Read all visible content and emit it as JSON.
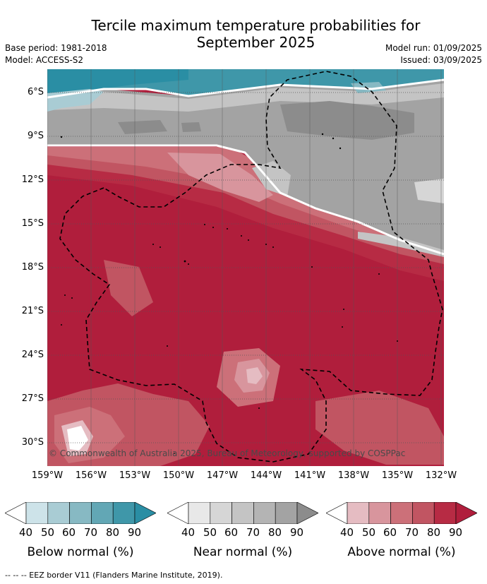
{
  "header": {
    "title_line1": "Tercile maximum temperature probabilities for",
    "title_line2": "September 2025",
    "base_period": "Base period: 1981-2018",
    "model": "Model: ACCESS-S2",
    "model_run": "Model run: 01/09/2025",
    "issued": "Issued: 03/09/2025"
  },
  "map": {
    "lat_ticks": [
      "6°S",
      "9°S",
      "12°S",
      "15°S",
      "18°S",
      "21°S",
      "24°S",
      "27°S",
      "30°S"
    ],
    "lon_ticks": [
      "159°W",
      "156°W",
      "153°W",
      "150°W",
      "147°W",
      "144°W",
      "141°W",
      "138°W",
      "135°W",
      "132°W"
    ],
    "copyright": "© Commonwealth of Australia 2025, Bureau of Meteorology, supported by COSPPac"
  },
  "legend": {
    "tick_labels": [
      "40",
      "50",
      "60",
      "70",
      "80",
      "90"
    ],
    "below": {
      "title": "Below normal (%)",
      "colors": [
        "#ffffff",
        "#cde3e9",
        "#a9ccd4",
        "#87b9c3",
        "#62a7b5",
        "#3f97a9",
        "#2a8ea4"
      ]
    },
    "near": {
      "title": "Near normal (%)",
      "colors": [
        "#ffffff",
        "#e8e8e8",
        "#d6d6d6",
        "#c4c4c4",
        "#b4b4b4",
        "#a3a3a3",
        "#8c8c8c"
      ]
    },
    "above": {
      "title": "Above normal (%)",
      "colors": [
        "#ffffff",
        "#e5bcc2",
        "#d8959d",
        "#cc7079",
        "#c15562",
        "#b72b44",
        "#b01e3c"
      ]
    },
    "eez_note": "--  --  -- EEZ border V11 (Flanders Marine Institute, 2019)."
  }
}
